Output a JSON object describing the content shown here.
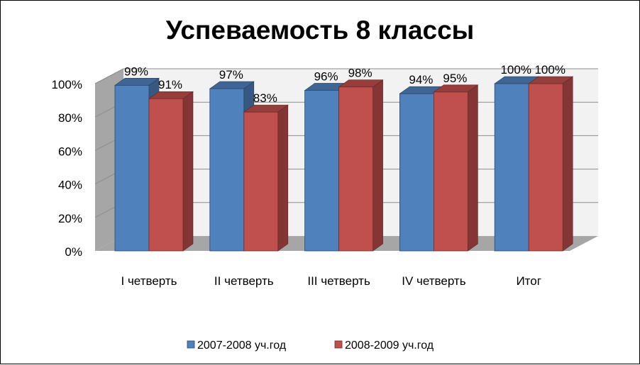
{
  "chart_data": {
    "type": "bar",
    "title": "Успеваемость 8 классы",
    "categories": [
      "I четверть",
      "II четверть",
      "III четверть",
      "IV четверть",
      "Итог"
    ],
    "series": [
      {
        "name": "2007-2008 уч.год",
        "values": [
          99,
          97,
          96,
          94,
          100
        ],
        "labels": [
          "99%",
          "97%",
          "96%",
          "94%",
          "100%"
        ],
        "color": "#4F81BD"
      },
      {
        "name": "2008-2009 уч.год",
        "values": [
          91,
          83,
          98,
          95,
          100
        ],
        "labels": [
          "91%",
          "83%",
          "98%",
          "95%",
          "100%"
        ],
        "color": "#C0504D"
      }
    ],
    "y_ticks": [
      "0%",
      "20%",
      "40%",
      "60%",
      "80%",
      "100%"
    ],
    "ylim": [
      0,
      100
    ],
    "grid": true,
    "three_d": true,
    "legend": "bottom"
  }
}
